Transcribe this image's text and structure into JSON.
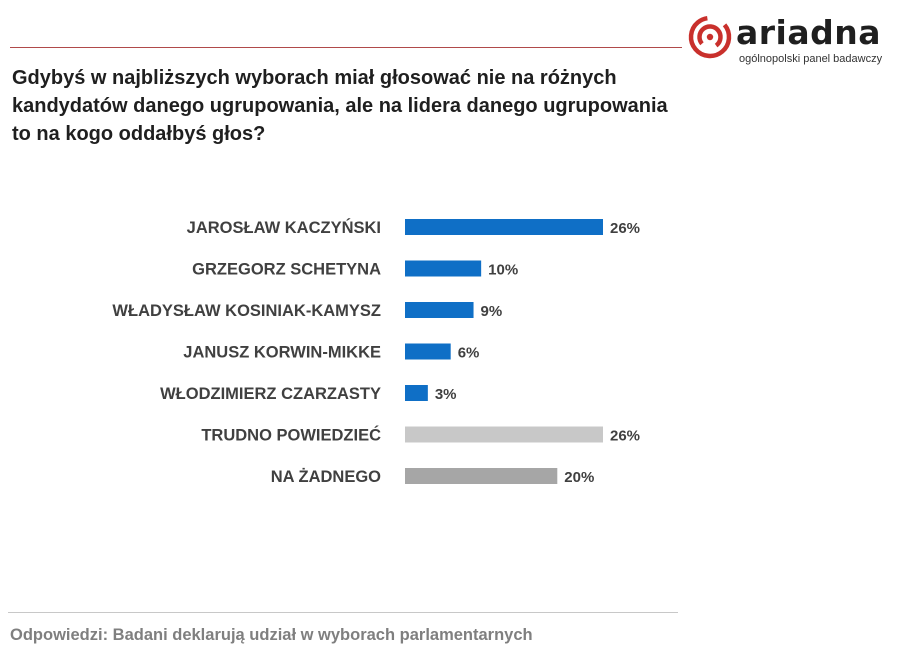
{
  "header": {
    "brand_name": "ariadna",
    "brand_tagline": "ogólnopolski panel badawczy",
    "brand_color": "#c9302c"
  },
  "question": {
    "lines": [
      "Gdybyś w najbliższych wyborach miał głosować nie na różnych",
      "kandydatów danego ugrupowania, ale na lidera danego ugrupowania",
      "to na kogo oddałbyś głos?"
    ]
  },
  "chart_data": {
    "type": "bar",
    "orientation": "horizontal",
    "categories": [
      "JAROSŁAW KACZYŃSKI",
      "GRZEGORZ SCHETYNA",
      "WŁADYSŁAW KOSINIAK-KAMYSZ",
      "JANUSZ KORWIN-MIKKE",
      "WŁODZIMIERZ CZARZASTY",
      "TRUDNO POWIEDZIEĆ",
      "NA ŻADNEGO"
    ],
    "values": [
      26,
      10,
      9,
      6,
      3,
      26,
      20
    ],
    "value_labels": [
      "26%",
      "10%",
      "9%",
      "6%",
      "3%",
      "26%",
      "20%"
    ],
    "colors": [
      "#0f6fc6",
      "#0f6fc6",
      "#0f6fc6",
      "#0f6fc6",
      "#0f6fc6",
      "#c8c8c8",
      "#a6a6a6"
    ],
    "xlim": [
      0,
      26
    ],
    "grid": false,
    "legend": "none"
  },
  "footnote": "Odpowiedzi: Badani deklarują udział w wyborach parlamentarnych"
}
